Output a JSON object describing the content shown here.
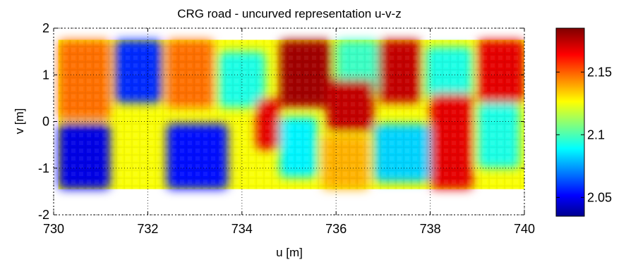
{
  "chart_data": {
    "type": "heatmap",
    "title": "CRG road - uncurved representation u-v-z",
    "xlabel": "u [m]",
    "ylabel": "v [m]",
    "xlim": [
      730,
      740
    ],
    "ylim": [
      -2,
      2
    ],
    "xticks": [
      "730",
      "732",
      "734",
      "736",
      "738",
      "740"
    ],
    "yticks": [
      "2",
      "1",
      "0",
      "-1",
      "-2"
    ],
    "grid": "dotted",
    "colorbar": {
      "range": [
        2.035,
        2.185
      ],
      "ticks": [
        "2.15",
        "2.1",
        "2.05"
      ],
      "colormap": "jet"
    },
    "surface_extent": {
      "u": [
        730.1,
        740
      ],
      "v": [
        -1.45,
        1.75
      ]
    },
    "patches": [
      {
        "u": [
          730.1,
          731.2
        ],
        "v": [
          0.05,
          1.75
        ],
        "z": 2.15
      },
      {
        "u": [
          731.3,
          732.3
        ],
        "v": [
          0.4,
          1.75
        ],
        "z": 2.06
      },
      {
        "u": [
          732.4,
          733.4
        ],
        "v": [
          0.3,
          1.75
        ],
        "z": 2.15
      },
      {
        "u": [
          733.5,
          734.5
        ],
        "v": [
          0.3,
          1.5
        ],
        "z": 2.095
      },
      {
        "u": [
          734.8,
          735.9
        ],
        "v": [
          0.3,
          1.75
        ],
        "z": 2.18
      },
      {
        "u": [
          736.0,
          736.9
        ],
        "v": [
          0.6,
          1.75
        ],
        "z": 2.1
      },
      {
        "u": [
          736.9,
          737.8
        ],
        "v": [
          0.4,
          1.75
        ],
        "z": 2.175
      },
      {
        "u": [
          737.9,
          738.9
        ],
        "v": [
          0.5,
          1.6
        ],
        "z": 2.095
      },
      {
        "u": [
          739.0,
          740.0
        ],
        "v": [
          0.4,
          1.75
        ],
        "z": 2.17
      },
      {
        "u": [
          730.1,
          731.2
        ],
        "v": [
          -1.45,
          -0.05
        ],
        "z": 2.05
      },
      {
        "u": [
          732.4,
          733.7
        ],
        "v": [
          -1.45,
          -0.05
        ],
        "z": 2.055
      },
      {
        "u": [
          734.3,
          734.8
        ],
        "v": [
          -0.6,
          0.5
        ],
        "z": 2.17
      },
      {
        "u": [
          734.8,
          735.6
        ],
        "v": [
          -1.2,
          0.1
        ],
        "z": 2.09
      },
      {
        "u": [
          735.8,
          736.8
        ],
        "v": [
          -0.2,
          0.9
        ],
        "z": 2.175
      },
      {
        "u": [
          735.7,
          736.7
        ],
        "v": [
          -1.45,
          -0.3
        ],
        "z": 2.14
      },
      {
        "u": [
          736.8,
          738.0
        ],
        "v": [
          -1.3,
          -0.05
        ],
        "z": 2.085
      },
      {
        "u": [
          738.0,
          738.9
        ],
        "v": [
          -1.45,
          0.6
        ],
        "z": 2.17
      },
      {
        "u": [
          739.0,
          739.9
        ],
        "v": [
          -1.0,
          0.4
        ],
        "z": 2.095
      }
    ]
  }
}
